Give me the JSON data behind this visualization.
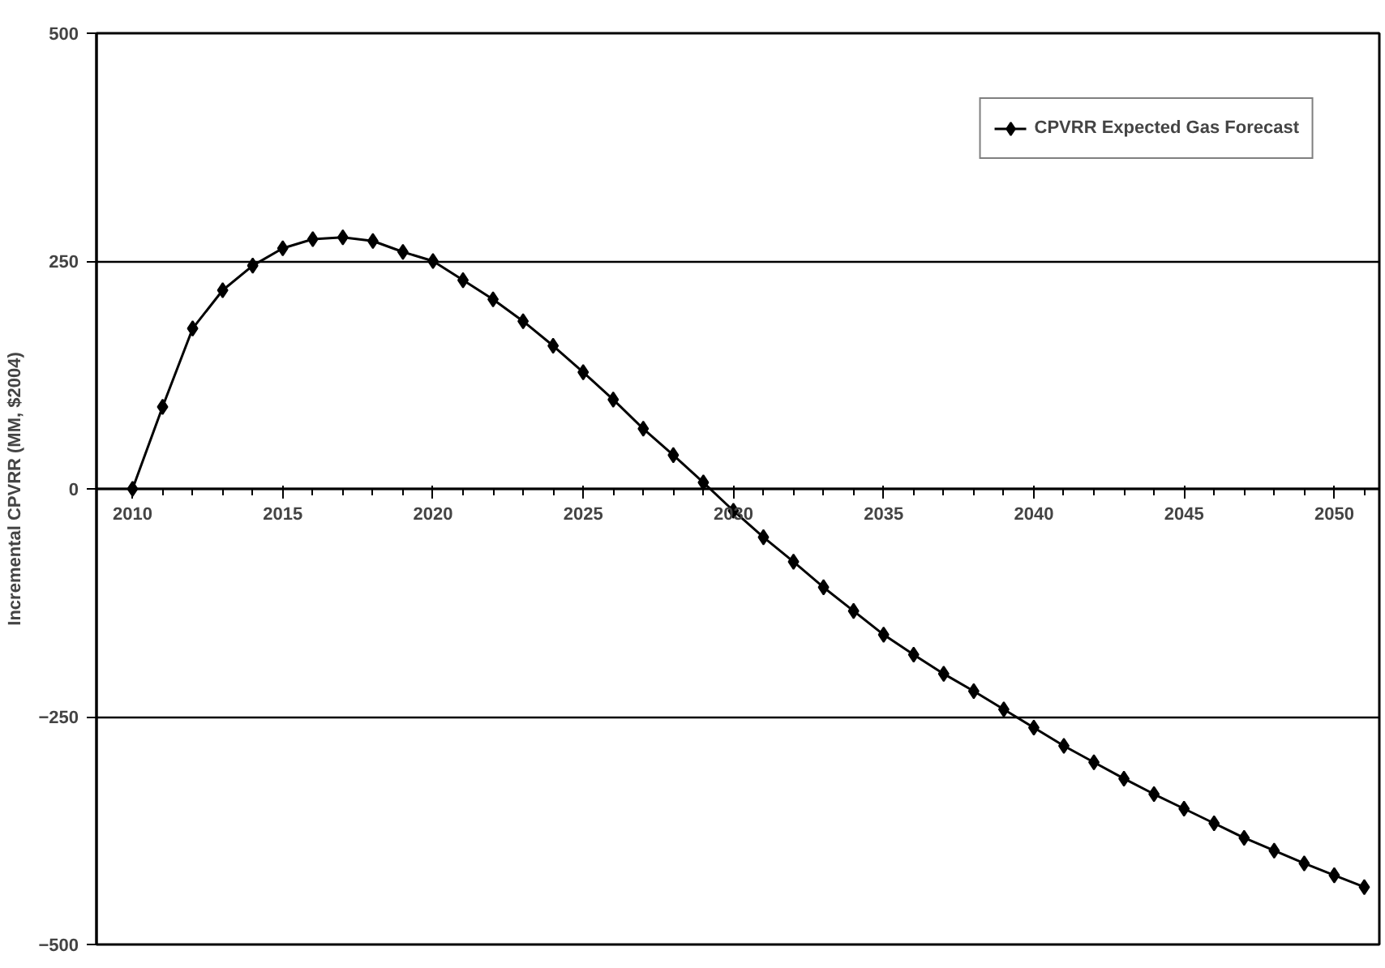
{
  "chart_data": {
    "type": "line",
    "ylabel": "Incremental CPVRR (MM, $2004)",
    "x": [
      2010,
      2011,
      2012,
      2013,
      2014,
      2015,
      2016,
      2017,
      2018,
      2019,
      2020,
      2021,
      2022,
      2023,
      2024,
      2025,
      2026,
      2027,
      2028,
      2029,
      2030,
      2031,
      2032,
      2033,
      2034,
      2035,
      2036,
      2037,
      2038,
      2039,
      2040,
      2041,
      2042,
      2043,
      2044,
      2045,
      2046,
      2047,
      2048,
      2049,
      2050,
      2051
    ],
    "series": [
      {
        "name": "CPVRR Expected Gas Forecast",
        "color": "#000000",
        "values": [
          0,
          90,
          176,
          218,
          245,
          264,
          274,
          276,
          272,
          260,
          250,
          229,
          208,
          184,
          157,
          128,
          98,
          66,
          37,
          7,
          -24,
          -53,
          -80,
          -108,
          -134,
          -160,
          -182,
          -203,
          -222,
          -242,
          -262,
          -282,
          -300,
          -318,
          -335,
          -351,
          -367,
          -383,
          -397,
          -411,
          -424,
          -437
        ]
      }
    ],
    "xlim": [
      2008.8,
      2051.5
    ],
    "xticks": [
      2010,
      2015,
      2020,
      2025,
      2030,
      2035,
      2040,
      2045,
      2050
    ],
    "ylim": [
      -500,
      500
    ],
    "yticks": [
      -500,
      -250,
      0,
      250,
      500
    ],
    "grid": "y",
    "legend": "top right",
    "marker": "diamond",
    "line_style": "solid"
  }
}
